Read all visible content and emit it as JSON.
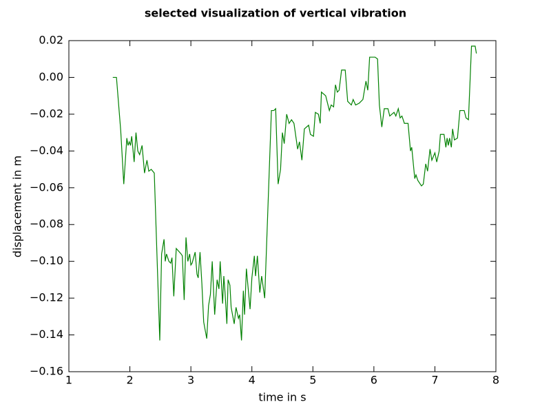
{
  "chart_data": {
    "type": "line",
    "title": "selected visualization of vertical vibration",
    "x_label": "time in s",
    "y_label": "displacement in m",
    "xlim": [
      1,
      8
    ],
    "xticks": [
      1,
      2,
      3,
      4,
      5,
      6,
      7,
      8
    ],
    "ylim": [
      -0.16,
      0.02
    ],
    "yticks": [
      {
        "value": -0.16,
        "label": "−0.16"
      },
      {
        "value": -0.14,
        "label": "−0.14"
      },
      {
        "value": -0.12,
        "label": "−0.12"
      },
      {
        "value": -0.1,
        "label": "−0.10"
      },
      {
        "value": -0.08,
        "label": "−0.08"
      },
      {
        "value": -0.06,
        "label": "−0.06"
      },
      {
        "value": -0.04,
        "label": "−0.04"
      },
      {
        "value": -0.02,
        "label": "−0.02"
      },
      {
        "value": 0,
        "label": "0.00"
      },
      0.02
    ],
    "grid": false,
    "series": [
      {
        "color": "#008000",
        "x": [
          1.72,
          1.78,
          1.85,
          1.9,
          1.95,
          1.97,
          1.99,
          2.01,
          2.03,
          2.07,
          2.1,
          2.13,
          2.16,
          2.2,
          2.24,
          2.28,
          2.31,
          2.35,
          2.4,
          2.49,
          2.52,
          2.56,
          2.58,
          2.6,
          2.64,
          2.67,
          2.69,
          2.72,
          2.76,
          2.84,
          2.86,
          2.89,
          2.92,
          2.95,
          2.98,
          3.0,
          3.02,
          3.07,
          3.1,
          3.12,
          3.15,
          3.18,
          3.21,
          3.26,
          3.29,
          3.32,
          3.35,
          3.39,
          3.43,
          3.46,
          3.48,
          3.52,
          3.54,
          3.56,
          3.59,
          3.61,
          3.64,
          3.66,
          3.71,
          3.74,
          3.78,
          3.8,
          3.83,
          3.86,
          3.88,
          3.91,
          3.94,
          3.97,
          4.0,
          4.04,
          4.06,
          4.09,
          4.13,
          4.16,
          4.21,
          4.32,
          4.36,
          4.39,
          4.43,
          4.47,
          4.5,
          4.53,
          4.57,
          4.61,
          4.65,
          4.69,
          4.75,
          4.78,
          4.82,
          4.86,
          4.93,
          4.96,
          5.01,
          5.04,
          5.09,
          5.12,
          5.14,
          5.21,
          5.27,
          5.3,
          5.34,
          5.37,
          5.4,
          5.43,
          5.47,
          5.53,
          5.57,
          5.63,
          5.66,
          5.7,
          5.76,
          5.82,
          5.87,
          5.9,
          5.93,
          5.98,
          6.02,
          6.06,
          6.09,
          6.13,
          6.17,
          6.23,
          6.26,
          6.33,
          6.36,
          6.4,
          6.43,
          6.46,
          6.5,
          6.56,
          6.6,
          6.62,
          6.67,
          6.69,
          6.72,
          6.78,
          6.81,
          6.85,
          6.88,
          6.92,
          6.95,
          7.0,
          7.03,
          7.07,
          7.09,
          7.15,
          7.18,
          7.2,
          7.22,
          7.24,
          7.27,
          7.29,
          7.32,
          7.37,
          7.41,
          7.48,
          7.51,
          7.55,
          7.6,
          7.66,
          7.68
        ],
        "values": [
          0.0,
          0.0,
          -0.029,
          -0.058,
          -0.033,
          -0.037,
          -0.035,
          -0.037,
          -0.032,
          -0.046,
          -0.03,
          -0.04,
          -0.042,
          -0.037,
          -0.052,
          -0.045,
          -0.051,
          -0.05,
          -0.052,
          -0.143,
          -0.096,
          -0.088,
          -0.1,
          -0.096,
          -0.1,
          -0.101,
          -0.098,
          -0.119,
          -0.093,
          -0.096,
          -0.097,
          -0.121,
          -0.087,
          -0.1,
          -0.096,
          -0.102,
          -0.101,
          -0.095,
          -0.107,
          -0.109,
          -0.095,
          -0.112,
          -0.133,
          -0.142,
          -0.124,
          -0.118,
          -0.1,
          -0.129,
          -0.11,
          -0.115,
          -0.1,
          -0.123,
          -0.108,
          -0.117,
          -0.134,
          -0.11,
          -0.113,
          -0.125,
          -0.134,
          -0.125,
          -0.131,
          -0.129,
          -0.143,
          -0.116,
          -0.129,
          -0.104,
          -0.115,
          -0.126,
          -0.109,
          -0.097,
          -0.108,
          -0.097,
          -0.117,
          -0.108,
          -0.12,
          -0.018,
          -0.018,
          -0.017,
          -0.058,
          -0.05,
          -0.03,
          -0.036,
          -0.02,
          -0.025,
          -0.023,
          -0.025,
          -0.039,
          -0.035,
          -0.045,
          -0.028,
          -0.026,
          -0.031,
          -0.032,
          -0.019,
          -0.02,
          -0.025,
          -0.008,
          -0.01,
          -0.018,
          -0.015,
          -0.016,
          -0.004,
          -0.008,
          -0.007,
          0.004,
          0.004,
          -0.013,
          -0.015,
          -0.012,
          -0.015,
          -0.014,
          -0.012,
          -0.002,
          -0.007,
          0.011,
          0.011,
          0.011,
          0.01,
          -0.015,
          -0.027,
          -0.017,
          -0.017,
          -0.021,
          -0.019,
          -0.021,
          -0.017,
          -0.022,
          -0.021,
          -0.025,
          -0.025,
          -0.04,
          -0.038,
          -0.055,
          -0.053,
          -0.056,
          -0.059,
          -0.058,
          -0.047,
          -0.051,
          -0.039,
          -0.045,
          -0.041,
          -0.046,
          -0.04,
          -0.031,
          -0.031,
          -0.038,
          -0.033,
          -0.037,
          -0.033,
          -0.038,
          -0.028,
          -0.034,
          -0.033,
          -0.018,
          -0.018,
          -0.022,
          -0.023,
          0.017,
          0.017,
          0.013
        ]
      }
    ]
  }
}
